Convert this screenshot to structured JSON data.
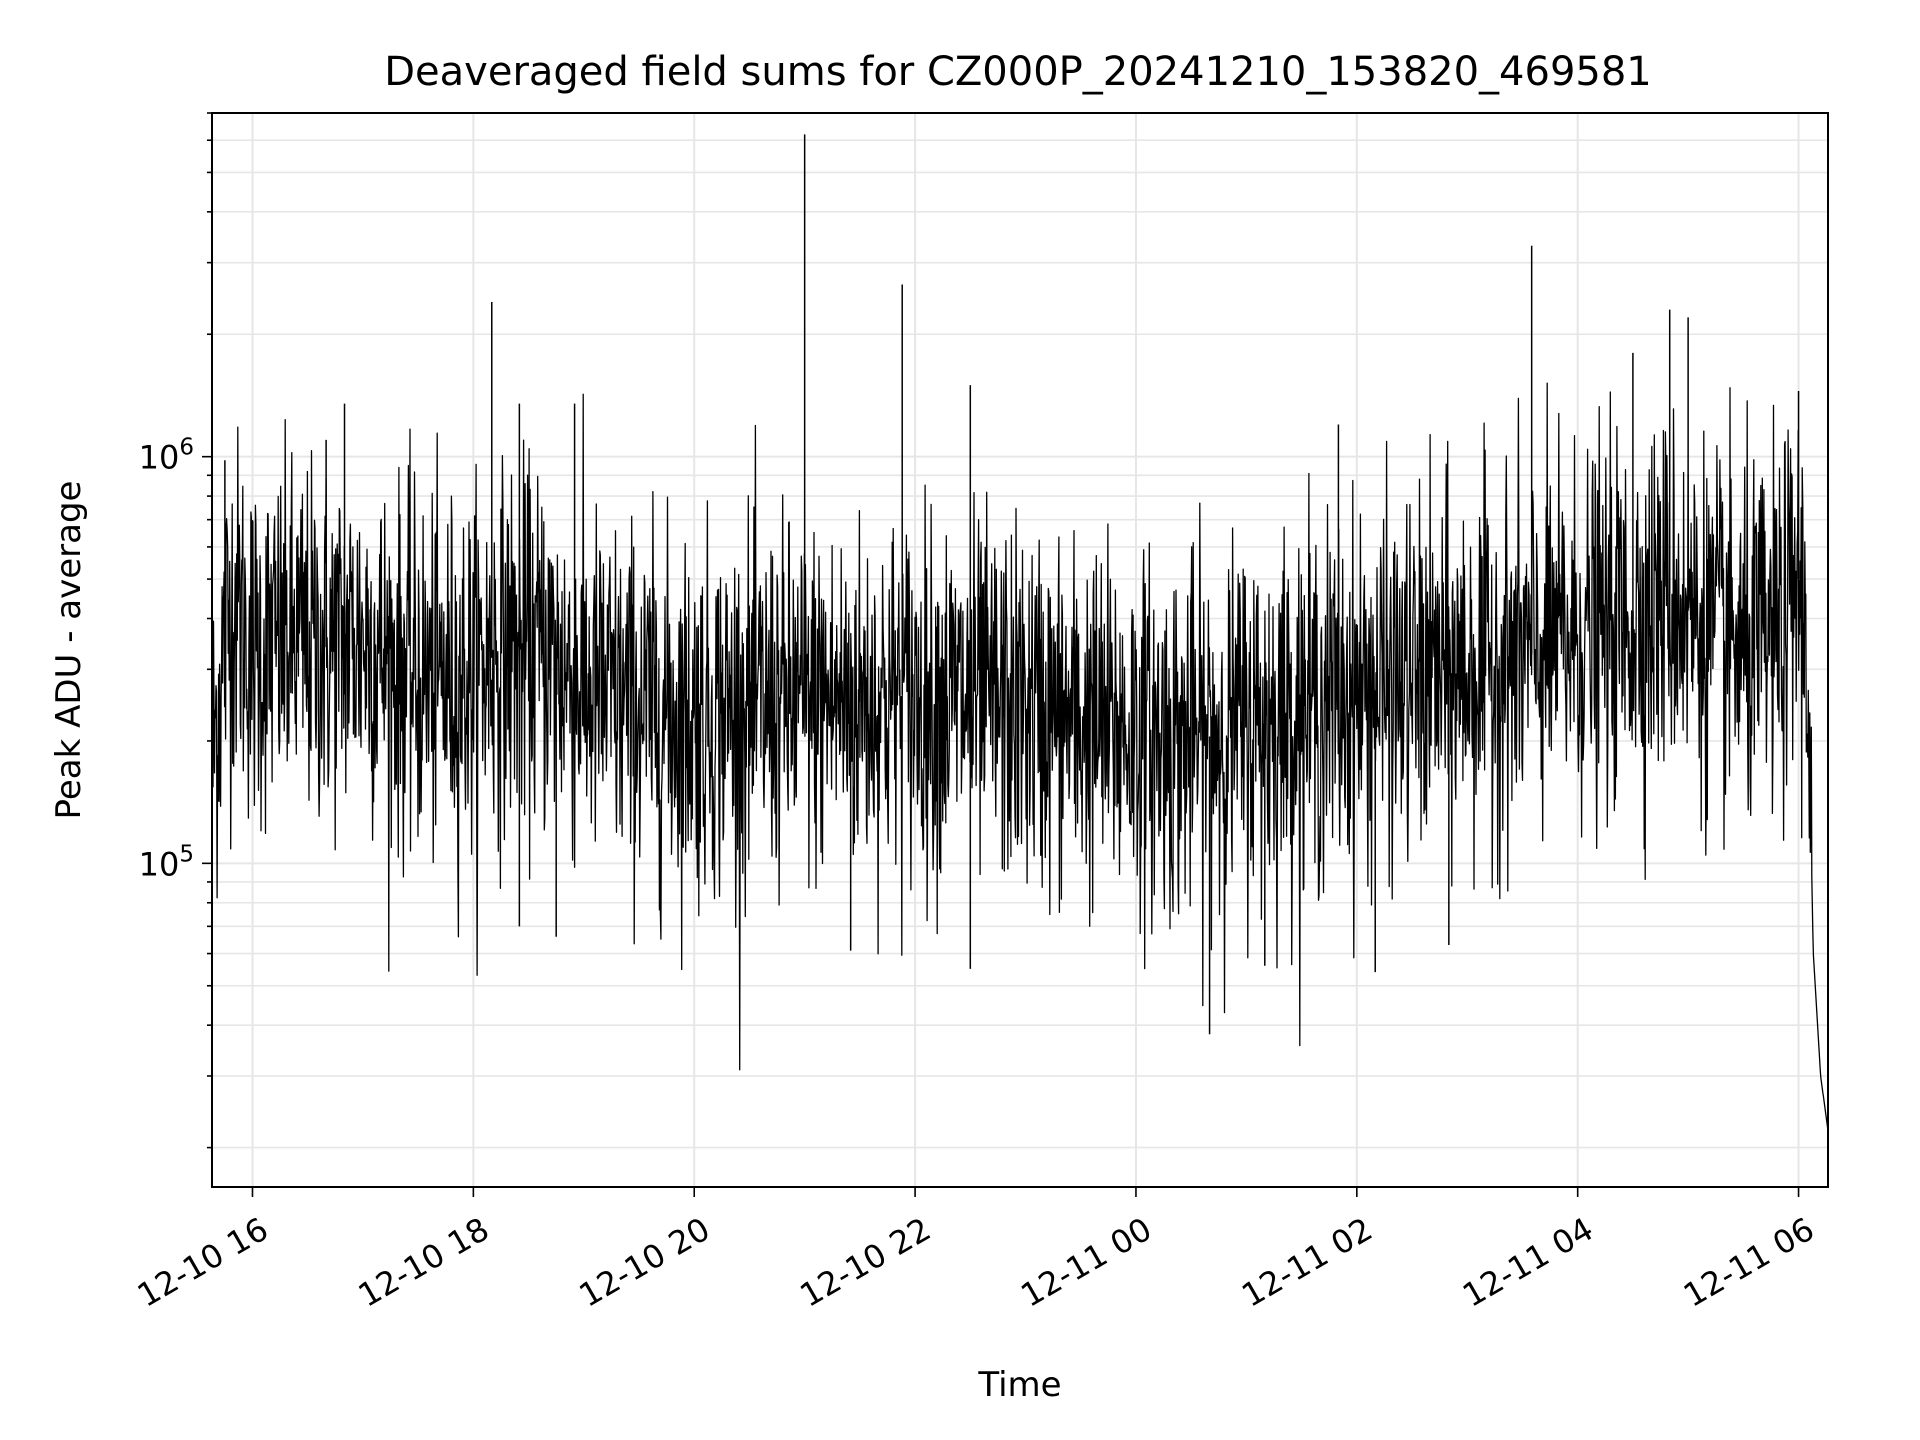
{
  "chart_data": {
    "type": "line",
    "title": "Deaveraged field sums for CZ000P_20241210_153820_469581",
    "xlabel": "Time",
    "ylabel": "Peak ADU - average",
    "yscale": "log",
    "ylim": [
      16000,
      7000000
    ],
    "xlim": [
      "2024-12-10 15:38",
      "2024-12-11 06:16"
    ],
    "grid": true,
    "line_color": "#000000",
    "grid_color": "#e6e6e6",
    "x_ticks": [
      {
        "t": "2024-12-10 16:00",
        "label": "12-10 16"
      },
      {
        "t": "2024-12-10 18:00",
        "label": "12-10 18"
      },
      {
        "t": "2024-12-10 20:00",
        "label": "12-10 20"
      },
      {
        "t": "2024-12-10 22:00",
        "label": "12-10 22"
      },
      {
        "t": "2024-12-11 00:00",
        "label": "12-11 00"
      },
      {
        "t": "2024-12-11 02:00",
        "label": "12-11 02"
      },
      {
        "t": "2024-12-11 04:00",
        "label": "12-11 04"
      },
      {
        "t": "2024-12-11 06:00",
        "label": "12-11 06"
      }
    ],
    "y_ticks": [
      {
        "value": 100000,
        "base": "10",
        "exp": "5"
      },
      {
        "value": 1000000,
        "base": "10",
        "exp": "6"
      }
    ],
    "series": [
      {
        "x": [
          "2024-12-10 15:38",
          "2024-12-10 15:45",
          "2024-12-10 15:50",
          "2024-12-10 16:00",
          "2024-12-10 16:20",
          "2024-12-10 16:40",
          "2024-12-10 17:00",
          "2024-12-10 17:20",
          "2024-12-10 17:40",
          "2024-12-10 18:00",
          "2024-12-10 18:10",
          "2024-12-10 18:20",
          "2024-12-10 18:40",
          "2024-12-10 19:00",
          "2024-12-10 19:30",
          "2024-12-10 20:00",
          "2024-12-10 20:30",
          "2024-12-10 21:00",
          "2024-12-10 21:30",
          "2024-12-10 21:53",
          "2024-12-10 22:00",
          "2024-12-10 22:30",
          "2024-12-10 23:00",
          "2024-12-10 23:30",
          "2024-12-11 00:00",
          "2024-12-11 00:20",
          "2024-12-11 00:40",
          "2024-12-11 01:00",
          "2024-12-11 01:30",
          "2024-12-11 02:00",
          "2024-12-11 02:30",
          "2024-12-11 03:00",
          "2024-12-11 03:30",
          "2024-12-11 04:00",
          "2024-12-11 04:30",
          "2024-12-11 04:50",
          "2024-12-11 05:10",
          "2024-12-11 05:30",
          "2024-12-11 05:50",
          "2024-12-11 06:00",
          "2024-12-11 06:05",
          "2024-12-11 06:08",
          "2024-12-11 06:12",
          "2024-12-11 06:16"
        ],
        "y": [
          180000,
          350000,
          450000,
          330000,
          350000,
          340000,
          360000,
          300000,
          280000,
          290000,
          320000,
          340000,
          330000,
          270000,
          240000,
          230000,
          240000,
          250000,
          250000,
          260000,
          255000,
          250000,
          240000,
          220000,
          210000,
          200000,
          205000,
          220000,
          240000,
          260000,
          280000,
          300000,
          320000,
          360000,
          400000,
          460000,
          380000,
          330000,
          360000,
          500000,
          320000,
          60000,
          30000,
          22000
        ]
      }
    ],
    "spikes": [
      {
        "t": "2024-12-10 15:45",
        "value": 980000
      },
      {
        "t": "2024-12-10 16:40",
        "value": 1100000
      },
      {
        "t": "2024-12-10 16:50",
        "value": 1350000
      },
      {
        "t": "2024-12-10 18:10",
        "value": 2400000
      },
      {
        "t": "2024-12-10 18:25",
        "value": 1350000
      },
      {
        "t": "2024-12-10 18:55",
        "value": 1350000
      },
      {
        "t": "2024-12-10 21:00",
        "value": 6200000
      },
      {
        "t": "2024-12-10 21:53",
        "value": 2650000
      },
      {
        "t": "2024-12-10 22:30",
        "value": 1500000
      },
      {
        "t": "2024-12-11 01:50",
        "value": 1200000
      },
      {
        "t": "2024-12-11 03:35",
        "value": 3300000
      },
      {
        "t": "2024-12-11 04:30",
        "value": 1800000
      },
      {
        "t": "2024-12-11 04:50",
        "value": 2300000
      },
      {
        "t": "2024-12-11 05:00",
        "value": 2200000
      },
      {
        "t": "2024-12-11 06:00",
        "value": 1450000
      }
    ],
    "dips": [
      {
        "t": "2024-12-10 18:25",
        "value": 70000
      },
      {
        "t": "2024-12-10 18:45",
        "value": 66000
      },
      {
        "t": "2024-12-10 21:25",
        "value": 61000
      },
      {
        "t": "2024-12-10 22:30",
        "value": 55000
      },
      {
        "t": "2024-12-11 00:40",
        "value": 38000
      },
      {
        "t": "2024-12-11 01:10",
        "value": 56000
      },
      {
        "t": "2024-12-11 02:10",
        "value": 54000
      },
      {
        "t": "2024-12-11 02:50",
        "value": 63000
      }
    ]
  }
}
